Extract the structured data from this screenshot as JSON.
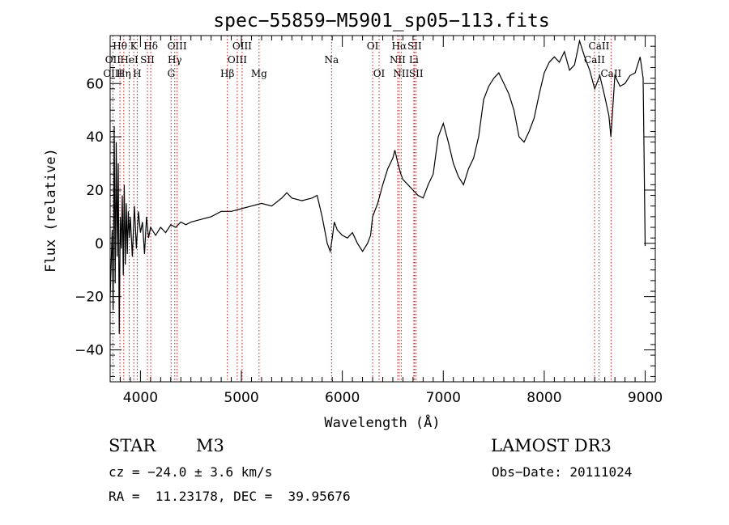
{
  "chart_data": {
    "type": "line",
    "title": "spec−55859−M5901_sp05−113.fits",
    "xlabel": "Wavelength (Å)",
    "ylabel": "Flux (relative)",
    "xlim": [
      3700,
      9100
    ],
    "ylim": [
      -52,
      78
    ],
    "xticks": [
      4000,
      5000,
      6000,
      7000,
      8000,
      9000
    ],
    "xtick_labels": [
      "4000",
      "5000",
      "6000",
      "7000",
      "8000",
      "9000"
    ],
    "yticks": [
      -40,
      -20,
      0,
      20,
      40,
      60
    ],
    "ytick_labels": [
      "−40",
      "−20",
      "0",
      "20",
      "40",
      "60"
    ],
    "grid": false,
    "line_color": "#000000",
    "marker_color": "#b22222",
    "series": [
      {
        "x": [
          3700,
          3720,
          3730,
          3740,
          3750,
          3760,
          3770,
          3780,
          3790,
          3800,
          3810,
          3820,
          3830,
          3840,
          3850,
          3860,
          3870,
          3880,
          3890,
          3900,
          3920,
          3940,
          3960,
          3980,
          4000,
          4020,
          4040,
          4060,
          4080,
          4100,
          4150,
          4200,
          4250,
          4300,
          4350,
          4400,
          4450,
          4500,
          4600,
          4700,
          4800,
          4900,
          5000,
          5100,
          5200,
          5300,
          5400,
          5450,
          5500,
          5600,
          5700,
          5750,
          5800,
          5850,
          5880,
          5900,
          5920,
          5950,
          6000,
          6050,
          6100,
          6150,
          6200,
          6250,
          6280,
          6300,
          6350,
          6400,
          6450,
          6500,
          6520,
          6550,
          6580,
          6600,
          6650,
          6700,
          6750,
          6800,
          6850,
          6900,
          6950,
          7000,
          7050,
          7100,
          7150,
          7200,
          7250,
          7300,
          7350,
          7400,
          7450,
          7500,
          7550,
          7600,
          7650,
          7700,
          7750,
          7800,
          7850,
          7900,
          7950,
          8000,
          8050,
          8100,
          8150,
          8200,
          8250,
          8300,
          8350,
          8400,
          8450,
          8500,
          8550,
          8600,
          8640,
          8660,
          8700,
          8750,
          8800,
          8850,
          8900,
          8950,
          8980,
          9000
        ],
        "y": [
          -20,
          5,
          -25,
          44,
          -15,
          38,
          -5,
          30,
          -34,
          10,
          -2,
          18,
          -12,
          22,
          -8,
          15,
          -4,
          12,
          2,
          10,
          -5,
          14,
          -2,
          12,
          4,
          8,
          -4,
          10,
          2,
          6,
          3,
          6,
          4,
          7,
          6,
          8,
          7,
          8,
          9,
          10,
          12,
          12,
          13,
          14,
          15,
          14,
          17,
          19,
          17,
          16,
          17,
          18,
          10,
          0,
          -3,
          2,
          8,
          5,
          3,
          2,
          4,
          0,
          -3,
          0,
          3,
          10,
          15,
          22,
          28,
          32,
          35,
          30,
          26,
          24,
          22,
          20,
          18,
          17,
          22,
          26,
          40,
          45,
          38,
          30,
          25,
          22,
          28,
          32,
          40,
          54,
          59,
          62,
          64,
          60,
          56,
          50,
          40,
          38,
          42,
          47,
          56,
          64,
          68,
          70,
          68,
          72,
          65,
          67,
          76,
          70,
          65,
          58,
          63,
          55,
          48,
          40,
          63,
          59,
          60,
          63,
          64,
          70,
          62,
          -1
        ]
      }
    ],
    "annotations": [
      {
        "label": "Hθ",
        "x": 3797,
        "row": 1
      },
      {
        "label": "OII",
        "x": 3727,
        "row": 2
      },
      {
        "label": "OIII",
        "x": 3727,
        "row": 3
      },
      {
        "label": "K",
        "x": 3934,
        "row": 1
      },
      {
        "label": "HeI",
        "x": 3889,
        "row": 2
      },
      {
        "label": "Hη",
        "x": 3835,
        "row": 3
      },
      {
        "label": "Hδ",
        "x": 4102,
        "row": 1
      },
      {
        "label": "SII",
        "x": 4069,
        "row": 2
      },
      {
        "label": "H",
        "x": 3968,
        "row": 3
      },
      {
        "label": "OIII",
        "x": 4363,
        "row": 1
      },
      {
        "label": "Hγ",
        "x": 4340,
        "row": 2
      },
      {
        "label": "G",
        "x": 4304,
        "row": 3
      },
      {
        "label": "OIII",
        "x": 5007,
        "row": 1
      },
      {
        "label": "OIII",
        "x": 4959,
        "row": 2
      },
      {
        "label": "Hβ",
        "x": 4861,
        "row": 3
      },
      {
        "label": "Mg",
        "x": 5175,
        "row": 3
      },
      {
        "label": "Na",
        "x": 5893,
        "row": 2
      },
      {
        "label": "OI",
        "x": 6300,
        "row": 1
      },
      {
        "label": "OI",
        "x": 6364,
        "row": 3
      },
      {
        "label": "Hα",
        "x": 6563,
        "row": 1
      },
      {
        "label": "NII",
        "x": 6548,
        "row": 2
      },
      {
        "label": "NII",
        "x": 6583,
        "row": 3
      },
      {
        "label": "SII",
        "x": 6716,
        "row": 1
      },
      {
        "label": "Li",
        "x": 6708,
        "row": 2
      },
      {
        "label": "SII",
        "x": 6731,
        "row": 3
      },
      {
        "label": "CaII",
        "x": 8542,
        "row": 1
      },
      {
        "label": "CaII",
        "x": 8498,
        "row": 2
      },
      {
        "label": "CaII",
        "x": 8662,
        "row": 3
      }
    ]
  },
  "info": {
    "object_class": "STAR",
    "subclass": "M3",
    "survey": "LAMOST DR3",
    "velocity": "cz = −24.0 ± 3.6 km/s",
    "obs_date": "Obs−Date: 20111024",
    "coords": "RA =  11.23178, DEC =  39.95676"
  }
}
